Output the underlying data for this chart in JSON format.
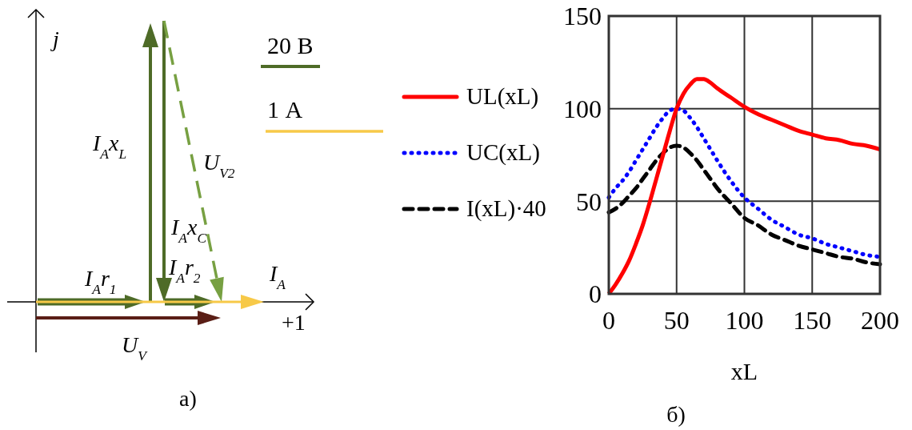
{
  "chart_data": [
    {
      "type": "other",
      "annotations": [
        "j",
        "+1",
        "20 В",
        "1 А",
        "I$_{A}$x$_{L}$",
        "U$_{V2}$",
        "I$_{A}$x$_{C}$",
        "I$_{A}$r$_{1}$",
        "I$_{A}$r$_{2}$",
        "I$_{A}$",
        "U$_{V}$",
        "а)"
      ]
    },
    {
      "type": "line",
      "xlabel": "xL",
      "x": [
        0,
        5,
        10,
        15,
        20,
        25,
        30,
        35,
        40,
        45,
        50,
        55,
        60,
        65,
        70,
        75,
        80,
        90,
        100,
        110,
        120,
        130,
        140,
        150,
        160,
        170,
        180,
        190,
        200
      ],
      "series": [
        {
          "name": "UL(xL)",
          "color": "#ff0000",
          "line_style": "solid",
          "values": [
            0,
            5,
            11,
            18,
            27,
            37,
            49,
            62,
            75,
            88,
            100,
            108,
            113,
            116,
            116,
            114,
            111,
            106,
            101,
            97,
            94,
            91,
            88,
            86,
            84,
            83,
            81,
            80,
            78
          ]
        },
        {
          "name": "UC(xL)",
          "color": "#0000ff",
          "line_style": "dotted",
          "values": [
            52,
            57,
            61,
            66,
            72,
            78,
            84,
            90,
            95,
            99,
            100,
            99,
            95,
            90,
            84,
            78,
            72,
            61,
            52,
            46,
            40,
            36,
            32,
            30,
            27,
            25,
            23,
            21,
            20
          ]
        },
        {
          "name": "I(xL)·40",
          "color": "#000000",
          "line_style": "dashed",
          "values": [
            44,
            46,
            49,
            53,
            57,
            62,
            67,
            72,
            76,
            79,
            80,
            79,
            76,
            72,
            67,
            62,
            57,
            49,
            41,
            37,
            32,
            29,
            26,
            24,
            22,
            20,
            19,
            17,
            16
          ]
        }
      ],
      "xlim": [
        0,
        200
      ],
      "xticks": [
        0,
        50,
        100,
        150,
        200
      ],
      "ylim": [
        0,
        150
      ],
      "yticks": [
        0,
        50,
        100,
        150
      ],
      "grid": true,
      "legend": "left",
      "annotations": [
        "б)"
      ]
    }
  ]
}
